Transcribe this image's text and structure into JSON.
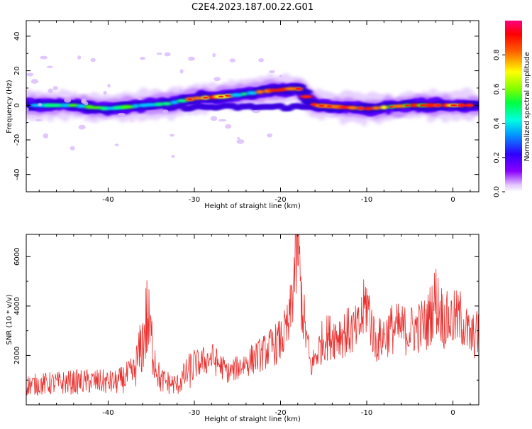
{
  "chart_data": [
    {
      "type": "heatmap",
      "title": "C2E4.2023.187.00.22.G01",
      "xlabel": "Height of straight line (km)",
      "ylabel": "Frequency (Hz)",
      "xlim": [
        -49.5,
        3
      ],
      "ylim": [
        -50,
        49
      ],
      "xticks": [
        -40,
        -30,
        -20,
        -10,
        0
      ],
      "yticks": [
        -40,
        -20,
        0,
        20,
        40
      ],
      "colorbar": {
        "label": "Normalized spectral amplitude",
        "range": [
          0,
          1
        ],
        "ticks": [
          0.0,
          0.2,
          0.4,
          0.6,
          0.8
        ]
      },
      "ridge": [
        {
          "x": -49.5,
          "f": 0
        },
        {
          "x": -44,
          "f": 0
        },
        {
          "x": -40,
          "f": -2
        },
        {
          "x": -36,
          "f": 0
        },
        {
          "x": -33,
          "f": 1
        },
        {
          "x": -30,
          "f": 4
        },
        {
          "x": -27,
          "f": 5
        },
        {
          "x": -25,
          "f": 6
        },
        {
          "x": -22,
          "f": 8
        },
        {
          "x": -20,
          "f": 9
        },
        {
          "x": -18,
          "f": 10
        },
        {
          "x": -16,
          "f": 0
        },
        {
          "x": -10,
          "f": -2
        },
        {
          "x": -5,
          "f": 0
        },
        {
          "x": 0,
          "f": 0
        },
        {
          "x": 2.5,
          "f": 0
        }
      ]
    },
    {
      "type": "line",
      "xlabel": "Height of straight line (km)",
      "ylabel": "SNR (10 * v/v)",
      "xlim": [
        -49.5,
        3
      ],
      "ylim": [
        0,
        6900
      ],
      "xticks": [
        -40,
        -30,
        -20,
        -10,
        0
      ],
      "yticks": [
        2000,
        4000,
        6000
      ],
      "color": "#e8302e",
      "envelope": [
        {
          "x": -49.5,
          "y": 800
        },
        {
          "x": -45,
          "y": 900
        },
        {
          "x": -42,
          "y": 950
        },
        {
          "x": -39,
          "y": 900
        },
        {
          "x": -37,
          "y": 1300
        },
        {
          "x": -36,
          "y": 2500
        },
        {
          "x": -35.5,
          "y": 3500
        },
        {
          "x": -35,
          "y": 2600
        },
        {
          "x": -34,
          "y": 1000
        },
        {
          "x": -32,
          "y": 800
        },
        {
          "x": -30,
          "y": 1600
        },
        {
          "x": -28,
          "y": 1900
        },
        {
          "x": -26,
          "y": 1300
        },
        {
          "x": -24,
          "y": 1700
        },
        {
          "x": -22,
          "y": 2100
        },
        {
          "x": -20,
          "y": 2600
        },
        {
          "x": -19,
          "y": 3200
        },
        {
          "x": -18.4,
          "y": 5400
        },
        {
          "x": -18,
          "y": 6400
        },
        {
          "x": -17.5,
          "y": 4000
        },
        {
          "x": -16.5,
          "y": 1500
        },
        {
          "x": -15,
          "y": 2700
        },
        {
          "x": -13,
          "y": 2900
        },
        {
          "x": -11,
          "y": 3000
        },
        {
          "x": -10,
          "y": 4200
        },
        {
          "x": -9,
          "y": 2500
        },
        {
          "x": -7,
          "y": 3100
        },
        {
          "x": -5,
          "y": 3000
        },
        {
          "x": -3,
          "y": 3300
        },
        {
          "x": -2,
          "y": 4300
        },
        {
          "x": -1,
          "y": 3400
        },
        {
          "x": 1,
          "y": 3500
        },
        {
          "x": 2,
          "y": 2700
        },
        {
          "x": 3,
          "y": 2900
        }
      ]
    }
  ]
}
